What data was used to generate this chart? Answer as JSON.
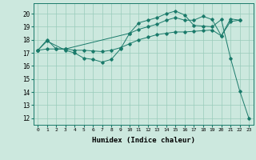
{
  "xlabel": "Humidex (Indice chaleur)",
  "ylabel": "",
  "bg_color": "#cce8de",
  "grid_color": "#99ccbb",
  "line_color": "#1a7a6a",
  "xlim": [
    -0.5,
    23.5
  ],
  "ylim": [
    11.5,
    20.8
  ],
  "yticks": [
    12,
    13,
    14,
    15,
    16,
    17,
    18,
    19,
    20
  ],
  "xticks": [
    0,
    1,
    2,
    3,
    4,
    5,
    6,
    7,
    8,
    9,
    10,
    11,
    12,
    13,
    14,
    15,
    16,
    17,
    18,
    19,
    20,
    21,
    22,
    23
  ],
  "line1_x": [
    0,
    1,
    3,
    4,
    5,
    6,
    7,
    8,
    9,
    10,
    11,
    12,
    13,
    14,
    15,
    16,
    17,
    18,
    19,
    20,
    21,
    22,
    23
  ],
  "line1_y": [
    17.2,
    17.9,
    17.2,
    17.0,
    16.6,
    16.5,
    16.3,
    16.5,
    17.3,
    18.5,
    19.3,
    19.5,
    19.7,
    20.0,
    20.2,
    19.9,
    19.1,
    19.05,
    19.0,
    19.55,
    16.6,
    14.1,
    12.0
  ],
  "line2_x": [
    0,
    1,
    2,
    3,
    4,
    5,
    6,
    7,
    8,
    9,
    10,
    11,
    12,
    13,
    14,
    15,
    16,
    17,
    18,
    19,
    20,
    21,
    22
  ],
  "line2_y": [
    17.2,
    17.3,
    17.3,
    17.3,
    17.2,
    17.2,
    17.15,
    17.1,
    17.2,
    17.4,
    17.7,
    18.0,
    18.2,
    18.4,
    18.5,
    18.6,
    18.6,
    18.65,
    18.7,
    18.75,
    18.3,
    19.4,
    19.5
  ],
  "line3_x": [
    0,
    1,
    2,
    3,
    10,
    11,
    12,
    13,
    14,
    15,
    16,
    17,
    18,
    19,
    20,
    21,
    22
  ],
  "line3_y": [
    17.2,
    18.0,
    17.3,
    17.3,
    18.5,
    18.8,
    19.0,
    19.2,
    19.5,
    19.7,
    19.5,
    19.5,
    19.8,
    19.55,
    18.3,
    19.6,
    19.5
  ]
}
